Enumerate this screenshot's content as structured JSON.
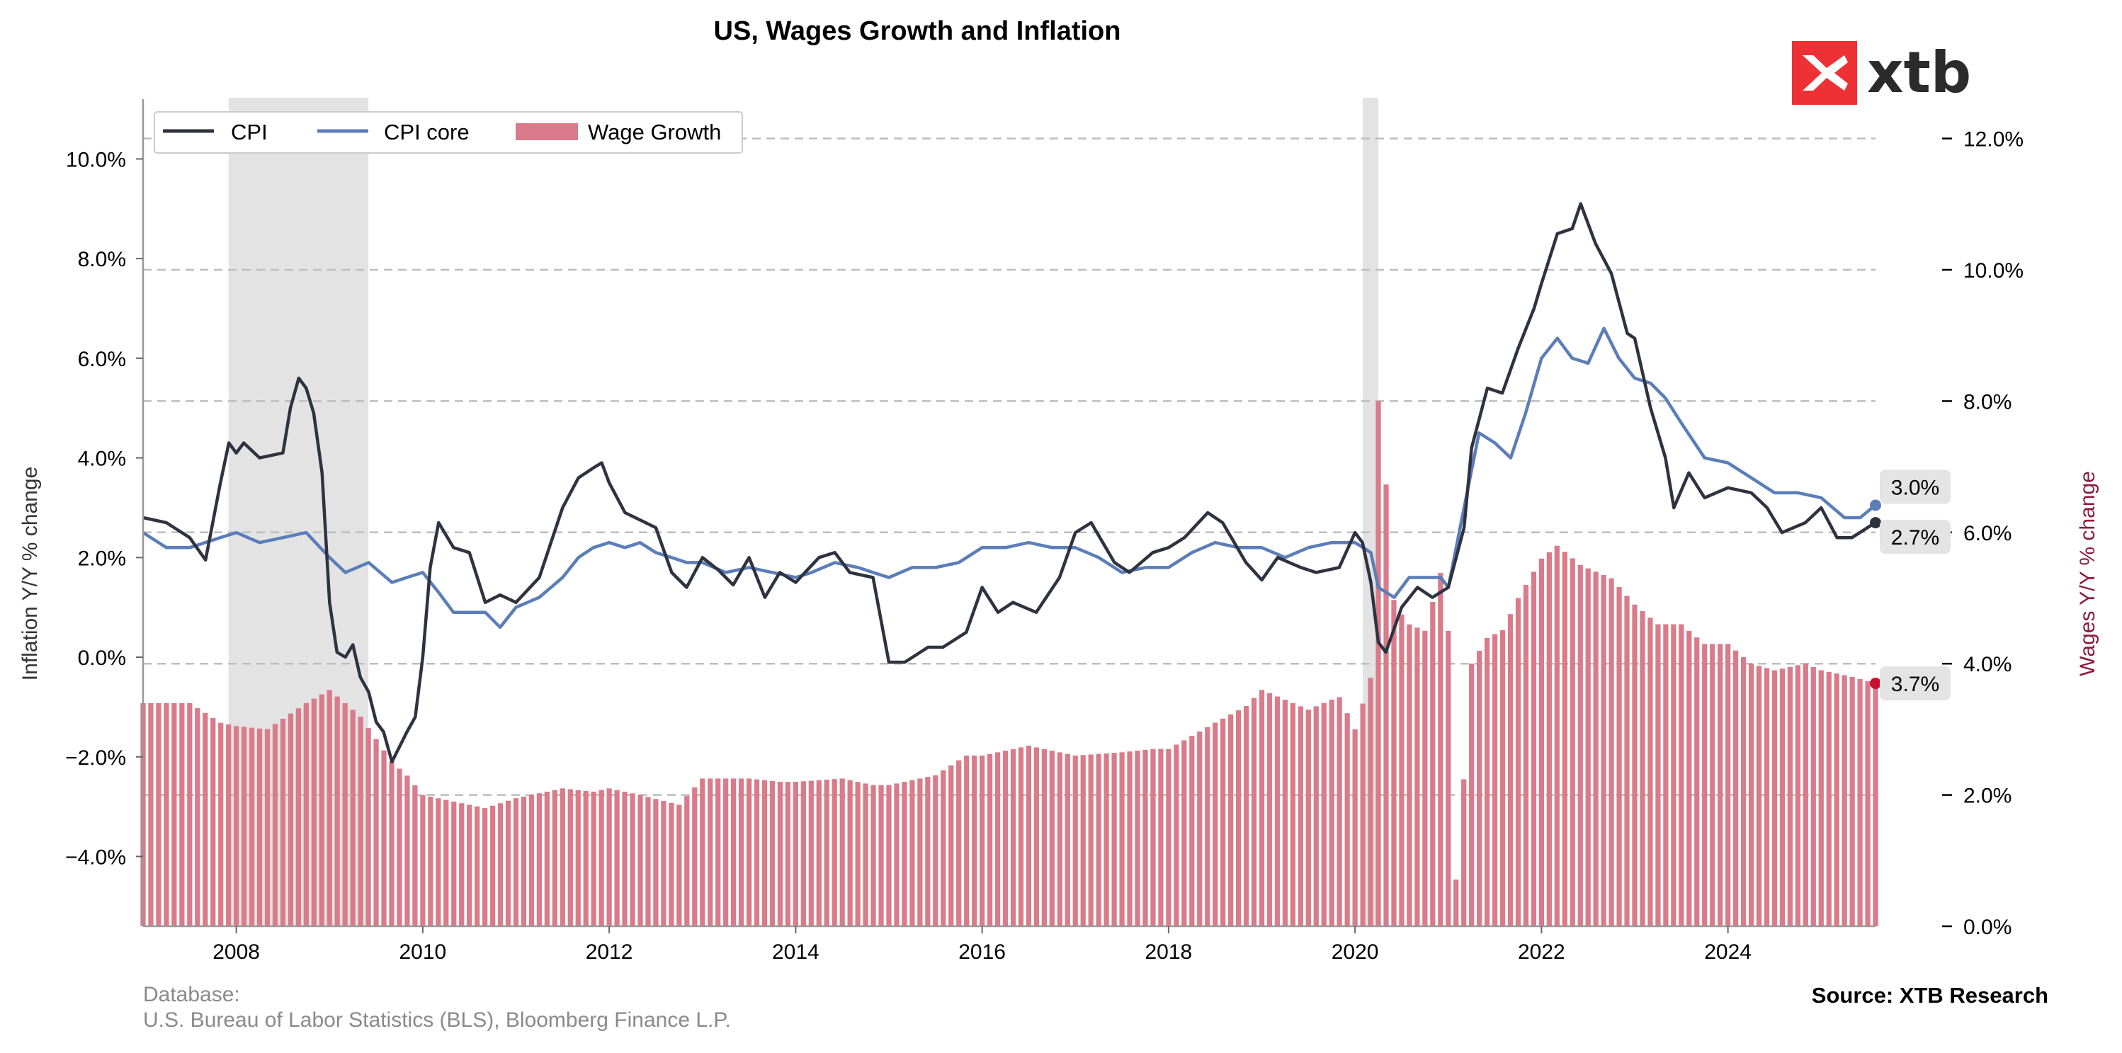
{
  "colors": {
    "cpi": "#2f3340",
    "cpi_core": "#5b7db8",
    "wage": "#d97b8a",
    "wage_dot": "#c8102e",
    "recession": "#e3e3e3",
    "grid": "#bdbdbd",
    "right_label": "#8b1a3a",
    "end_label_bg": "#e4e4e4",
    "logo_red": "#ee3135"
  },
  "logo": {
    "text": "xtb",
    "icon": "xtb-x-logo-icon"
  },
  "footer": {
    "database_label": "Database:",
    "database_sources": "U.S. Bureau of Labor Statistics (BLS), Bloomberg Finance L.P.",
    "source": "Source: XTB Research"
  },
  "chart_data": {
    "type": "line",
    "title": "US, Wages Growth and Inflation",
    "ylabel_left": "Inflation Y/Y % change",
    "ylabel_right": "Wages Y/Y % change",
    "x_start": 2007.0,
    "x_end": 2025.583,
    "x_ticks": [
      "2008",
      "2010",
      "2012",
      "2014",
      "2016",
      "2018",
      "2020",
      "2022",
      "2024"
    ],
    "y_left_lim": [
      -5.4,
      11.2
    ],
    "y_left_ticks": [
      "-4.0%",
      "-2.0%",
      "0.0%",
      "2.0%",
      "4.0%",
      "6.0%",
      "8.0%",
      "10.0%"
    ],
    "y_right_lim": [
      0.0,
      12.6
    ],
    "y_right_ticks": [
      "0.0%",
      "2.0%",
      "4.0%",
      "6.0%",
      "8.0%",
      "10.0%",
      "12.0%"
    ],
    "grid": "horizontal dashed",
    "legend_placement": "top-left",
    "recessions": [
      [
        2007.917,
        2009.417
      ],
      [
        2020.083,
        2020.25
      ]
    ],
    "series": [
      {
        "name": "CPI",
        "kind": "line",
        "axis": "left",
        "points": [
          [
            2007.0,
            2.8
          ],
          [
            2007.25,
            2.7
          ],
          [
            2007.5,
            2.4
          ],
          [
            2007.67,
            1.95
          ],
          [
            2007.83,
            3.5
          ],
          [
            2007.92,
            4.3
          ],
          [
            2008.0,
            4.1
          ],
          [
            2008.08,
            4.3
          ],
          [
            2008.25,
            4.0
          ],
          [
            2008.5,
            4.1
          ],
          [
            2008.58,
            5.0
          ],
          [
            2008.67,
            5.6
          ],
          [
            2008.75,
            5.4
          ],
          [
            2008.83,
            4.9
          ],
          [
            2008.92,
            3.7
          ],
          [
            2009.0,
            1.1
          ],
          [
            2009.08,
            0.1
          ],
          [
            2009.17,
            0.0
          ],
          [
            2009.25,
            0.25
          ],
          [
            2009.33,
            -0.4
          ],
          [
            2009.42,
            -0.7
          ],
          [
            2009.5,
            -1.3
          ],
          [
            2009.58,
            -1.5
          ],
          [
            2009.67,
            -2.1
          ],
          [
            2009.83,
            -1.5
          ],
          [
            2009.92,
            -1.2
          ],
          [
            2010.0,
            0.0
          ],
          [
            2010.08,
            1.8
          ],
          [
            2010.17,
            2.7
          ],
          [
            2010.33,
            2.2
          ],
          [
            2010.5,
            2.1
          ],
          [
            2010.67,
            1.1
          ],
          [
            2010.83,
            1.25
          ],
          [
            2011.0,
            1.1
          ],
          [
            2011.25,
            1.6
          ],
          [
            2011.5,
            3.0
          ],
          [
            2011.67,
            3.6
          ],
          [
            2011.83,
            3.8
          ],
          [
            2011.92,
            3.9
          ],
          [
            2012.0,
            3.5
          ],
          [
            2012.17,
            2.9
          ],
          [
            2012.5,
            2.6
          ],
          [
            2012.67,
            1.7
          ],
          [
            2012.83,
            1.4
          ],
          [
            2013.0,
            2.0
          ],
          [
            2013.17,
            1.75
          ],
          [
            2013.33,
            1.45
          ],
          [
            2013.5,
            2.0
          ],
          [
            2013.67,
            1.2
          ],
          [
            2013.83,
            1.7
          ],
          [
            2014.0,
            1.5
          ],
          [
            2014.25,
            2.0
          ],
          [
            2014.42,
            2.1
          ],
          [
            2014.58,
            1.7
          ],
          [
            2014.83,
            1.6
          ],
          [
            2015.0,
            -0.1
          ],
          [
            2015.17,
            -0.1
          ],
          [
            2015.42,
            0.2
          ],
          [
            2015.58,
            0.2
          ],
          [
            2015.83,
            0.5
          ],
          [
            2016.0,
            1.4
          ],
          [
            2016.17,
            0.9
          ],
          [
            2016.33,
            1.1
          ],
          [
            2016.58,
            0.9
          ],
          [
            2016.83,
            1.6
          ],
          [
            2017.0,
            2.5
          ],
          [
            2017.17,
            2.7
          ],
          [
            2017.42,
            1.9
          ],
          [
            2017.58,
            1.7
          ],
          [
            2017.83,
            2.1
          ],
          [
            2018.0,
            2.2
          ],
          [
            2018.17,
            2.4
          ],
          [
            2018.42,
            2.9
          ],
          [
            2018.58,
            2.7
          ],
          [
            2018.83,
            1.9
          ],
          [
            2019.0,
            1.55
          ],
          [
            2019.17,
            2.0
          ],
          [
            2019.42,
            1.8
          ],
          [
            2019.58,
            1.7
          ],
          [
            2019.83,
            1.8
          ],
          [
            2020.0,
            2.5
          ],
          [
            2020.08,
            2.3
          ],
          [
            2020.17,
            1.5
          ],
          [
            2020.25,
            0.3
          ],
          [
            2020.33,
            0.1
          ],
          [
            2020.5,
            1.0
          ],
          [
            2020.67,
            1.4
          ],
          [
            2020.83,
            1.2
          ],
          [
            2021.0,
            1.4
          ],
          [
            2021.17,
            2.6
          ],
          [
            2021.25,
            4.2
          ],
          [
            2021.42,
            5.4
          ],
          [
            2021.58,
            5.3
          ],
          [
            2021.75,
            6.2
          ],
          [
            2021.92,
            7.0
          ],
          [
            2022.0,
            7.5
          ],
          [
            2022.17,
            8.5
          ],
          [
            2022.33,
            8.6
          ],
          [
            2022.42,
            9.1
          ],
          [
            2022.58,
            8.3
          ],
          [
            2022.75,
            7.7
          ],
          [
            2022.92,
            6.5
          ],
          [
            2023.0,
            6.4
          ],
          [
            2023.17,
            5.0
          ],
          [
            2023.33,
            4.0
          ],
          [
            2023.42,
            3.0
          ],
          [
            2023.58,
            3.7
          ],
          [
            2023.75,
            3.2
          ],
          [
            2024.0,
            3.4
          ],
          [
            2024.25,
            3.3
          ],
          [
            2024.42,
            3.0
          ],
          [
            2024.58,
            2.5
          ],
          [
            2024.83,
            2.7
          ],
          [
            2025.0,
            3.0
          ],
          [
            2025.17,
            2.4
          ],
          [
            2025.33,
            2.4
          ],
          [
            2025.58,
            2.7
          ]
        ]
      },
      {
        "name": "CPI core",
        "kind": "line",
        "axis": "left",
        "points": [
          [
            2007.0,
            2.5
          ],
          [
            2007.25,
            2.2
          ],
          [
            2007.5,
            2.2
          ],
          [
            2007.83,
            2.4
          ],
          [
            2008.0,
            2.5
          ],
          [
            2008.25,
            2.3
          ],
          [
            2008.5,
            2.4
          ],
          [
            2008.75,
            2.5
          ],
          [
            2009.0,
            2.0
          ],
          [
            2009.17,
            1.7
          ],
          [
            2009.42,
            1.9
          ],
          [
            2009.67,
            1.5
          ],
          [
            2009.83,
            1.6
          ],
          [
            2010.0,
            1.7
          ],
          [
            2010.17,
            1.3
          ],
          [
            2010.33,
            0.9
          ],
          [
            2010.5,
            0.9
          ],
          [
            2010.67,
            0.9
          ],
          [
            2010.83,
            0.6
          ],
          [
            2011.0,
            1.0
          ],
          [
            2011.25,
            1.2
          ],
          [
            2011.5,
            1.6
          ],
          [
            2011.67,
            2.0
          ],
          [
            2011.83,
            2.2
          ],
          [
            2012.0,
            2.3
          ],
          [
            2012.17,
            2.2
          ],
          [
            2012.33,
            2.3
          ],
          [
            2012.5,
            2.1
          ],
          [
            2012.67,
            2.0
          ],
          [
            2012.83,
            1.9
          ],
          [
            2013.0,
            1.9
          ],
          [
            2013.25,
            1.7
          ],
          [
            2013.5,
            1.8
          ],
          [
            2013.75,
            1.7
          ],
          [
            2014.0,
            1.6
          ],
          [
            2014.17,
            1.7
          ],
          [
            2014.42,
            1.9
          ],
          [
            2014.67,
            1.8
          ],
          [
            2014.83,
            1.7
          ],
          [
            2015.0,
            1.6
          ],
          [
            2015.25,
            1.8
          ],
          [
            2015.5,
            1.8
          ],
          [
            2015.75,
            1.9
          ],
          [
            2016.0,
            2.2
          ],
          [
            2016.25,
            2.2
          ],
          [
            2016.5,
            2.3
          ],
          [
            2016.75,
            2.2
          ],
          [
            2017.0,
            2.2
          ],
          [
            2017.25,
            2.0
          ],
          [
            2017.5,
            1.7
          ],
          [
            2017.75,
            1.8
          ],
          [
            2018.0,
            1.8
          ],
          [
            2018.25,
            2.1
          ],
          [
            2018.5,
            2.3
          ],
          [
            2018.75,
            2.2
          ],
          [
            2019.0,
            2.2
          ],
          [
            2019.25,
            2.0
          ],
          [
            2019.5,
            2.2
          ],
          [
            2019.75,
            2.3
          ],
          [
            2020.0,
            2.3
          ],
          [
            2020.17,
            2.1
          ],
          [
            2020.25,
            1.4
          ],
          [
            2020.42,
            1.2
          ],
          [
            2020.58,
            1.6
          ],
          [
            2020.75,
            1.6
          ],
          [
            2020.92,
            1.6
          ],
          [
            2021.0,
            1.4
          ],
          [
            2021.17,
            3.0
          ],
          [
            2021.33,
            4.5
          ],
          [
            2021.5,
            4.3
          ],
          [
            2021.67,
            4.0
          ],
          [
            2021.83,
            4.9
          ],
          [
            2022.0,
            6.0
          ],
          [
            2022.17,
            6.4
          ],
          [
            2022.33,
            6.0
          ],
          [
            2022.5,
            5.9
          ],
          [
            2022.67,
            6.6
          ],
          [
            2022.83,
            6.0
          ],
          [
            2023.0,
            5.6
          ],
          [
            2023.17,
            5.5
          ],
          [
            2023.33,
            5.2
          ],
          [
            2023.5,
            4.7
          ],
          [
            2023.75,
            4.0
          ],
          [
            2024.0,
            3.9
          ],
          [
            2024.25,
            3.6
          ],
          [
            2024.5,
            3.3
          ],
          [
            2024.75,
            3.3
          ],
          [
            2025.0,
            3.2
          ],
          [
            2025.25,
            2.8
          ],
          [
            2025.42,
            2.8
          ],
          [
            2025.58,
            3.05
          ]
        ]
      },
      {
        "name": "Wage Growth",
        "kind": "bar",
        "axis": "right",
        "points": [
          [
            2007.0,
            3.4
          ],
          [
            2007.5,
            3.4
          ],
          [
            2007.83,
            3.1
          ],
          [
            2008.0,
            3.05
          ],
          [
            2008.33,
            3.0
          ],
          [
            2008.75,
            3.4
          ],
          [
            2009.0,
            3.6
          ],
          [
            2009.33,
            3.2
          ],
          [
            2009.67,
            2.5
          ],
          [
            2009.83,
            2.3
          ],
          [
            2010.0,
            2.0
          ],
          [
            2010.33,
            1.9
          ],
          [
            2010.67,
            1.8
          ],
          [
            2011.0,
            1.95
          ],
          [
            2011.5,
            2.1
          ],
          [
            2011.83,
            2.05
          ],
          [
            2012.0,
            2.1
          ],
          [
            2012.33,
            2.0
          ],
          [
            2012.75,
            1.85
          ],
          [
            2013.0,
            2.25
          ],
          [
            2013.5,
            2.25
          ],
          [
            2013.83,
            2.2
          ],
          [
            2014.0,
            2.2
          ],
          [
            2014.5,
            2.25
          ],
          [
            2014.83,
            2.15
          ],
          [
            2015.0,
            2.15
          ],
          [
            2015.5,
            2.3
          ],
          [
            2015.83,
            2.6
          ],
          [
            2016.0,
            2.6
          ],
          [
            2016.5,
            2.75
          ],
          [
            2016.83,
            2.65
          ],
          [
            2017.0,
            2.6
          ],
          [
            2017.5,
            2.65
          ],
          [
            2017.83,
            2.7
          ],
          [
            2018.0,
            2.7
          ],
          [
            2018.5,
            3.1
          ],
          [
            2018.83,
            3.35
          ],
          [
            2019.0,
            3.6
          ],
          [
            2019.5,
            3.3
          ],
          [
            2019.83,
            3.5
          ],
          [
            2020.0,
            3.0
          ],
          [
            2020.17,
            3.8
          ],
          [
            2020.25,
            8.0
          ],
          [
            2020.33,
            6.8
          ],
          [
            2020.42,
            4.9
          ],
          [
            2020.58,
            4.6
          ],
          [
            2020.75,
            4.5
          ],
          [
            2020.92,
            5.4
          ],
          [
            2021.0,
            4.5
          ],
          [
            2021.08,
            0.65
          ],
          [
            2021.17,
            2.3
          ],
          [
            2021.25,
            4.0
          ],
          [
            2021.42,
            4.4
          ],
          [
            2021.58,
            4.5
          ],
          [
            2021.75,
            5.0
          ],
          [
            2022.0,
            5.6
          ],
          [
            2022.17,
            5.8
          ],
          [
            2022.42,
            5.5
          ],
          [
            2022.75,
            5.3
          ],
          [
            2023.0,
            4.9
          ],
          [
            2023.25,
            4.6
          ],
          [
            2023.5,
            4.6
          ],
          [
            2023.75,
            4.3
          ],
          [
            2024.0,
            4.3
          ],
          [
            2024.25,
            4.0
          ],
          [
            2024.5,
            3.9
          ],
          [
            2024.83,
            4.0
          ],
          [
            2025.0,
            3.9
          ],
          [
            2025.33,
            3.8
          ],
          [
            2025.58,
            3.7
          ]
        ]
      }
    ],
    "end_labels": [
      {
        "series": "CPI core",
        "text": "3.0%",
        "value": 3.05
      },
      {
        "series": "CPI",
        "text": "2.7%",
        "value": 2.7
      },
      {
        "series": "Wage Growth",
        "text": "3.7%",
        "value": 3.7
      }
    ]
  }
}
